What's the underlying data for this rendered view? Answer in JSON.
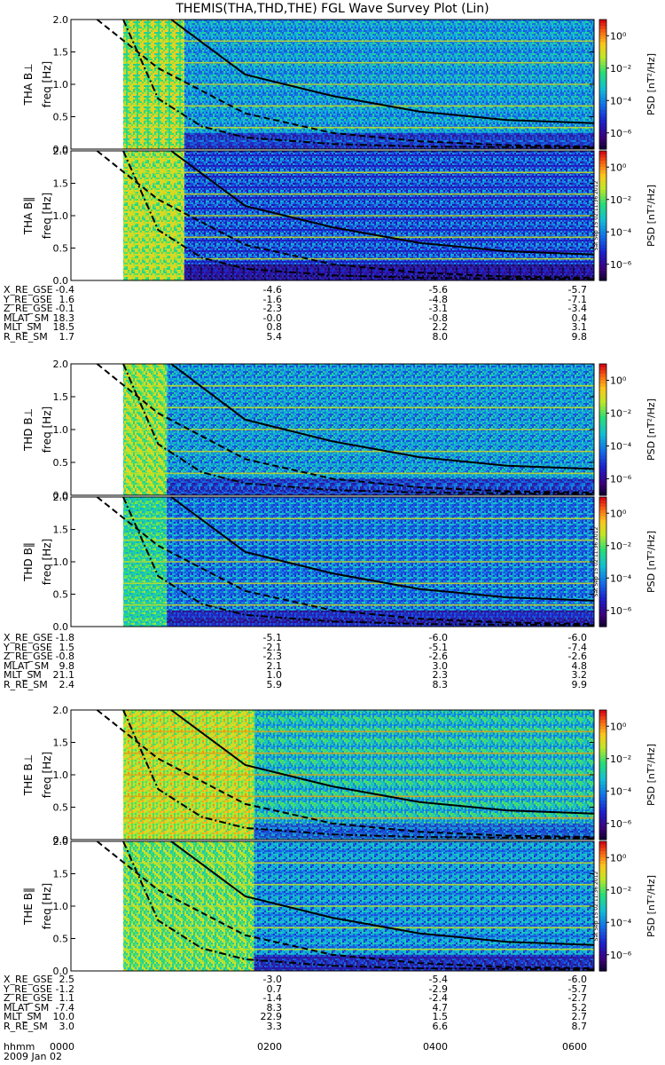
{
  "title": "THEMIS(THA,THD,THE) FGL Wave Survey Plot (Lin)",
  "colorbar": {
    "label": "PSD [nT²/Hz]",
    "ticks": [
      "10⁰",
      "10⁻²",
      "10⁻⁴",
      "10⁻⁶"
    ],
    "timestamp": "Sat Sep 15 02:11:36 2012"
  },
  "panel_ylabels": {
    "freq": "freq [Hz]",
    "tha_perp": "THA B⊥",
    "tha_par": "THA B‖",
    "thd_perp": "THD B⊥",
    "thd_par": "THD B‖",
    "the_perp": "THE B⊥",
    "the_par": "THE B‖"
  },
  "y_tick_labels": [
    "0.0",
    "0.5",
    "1.0",
    "1.5",
    "2.0"
  ],
  "time_axis": {
    "hhmm_label": "hhmm",
    "ticks": [
      "0000",
      "0200",
      "0400",
      "0600"
    ],
    "date": "2009 Jan 02"
  },
  "ephemeris": {
    "labels": [
      "X_RE_GSE",
      "Y_RE_GSE",
      "Z_RE_GSE",
      "MLAT_SM",
      "MLT_SM",
      "R_RE_SM"
    ],
    "tha": [
      [
        "-0.4",
        "-4.6",
        "-5.6",
        "-5.7"
      ],
      [
        "1.6",
        "-1.6",
        "-4.8",
        "-7.1"
      ],
      [
        "-0.1",
        "-2.3",
        "-3.1",
        "-3.4"
      ],
      [
        "18.3",
        "-0.0",
        "-0.8",
        "0.4"
      ],
      [
        "18.5",
        "0.8",
        "2.2",
        "3.1"
      ],
      [
        "1.7",
        "5.4",
        "8.0",
        "9.8"
      ]
    ],
    "thd": [
      [
        "-1.8",
        "-5.1",
        "-6.0",
        "-6.0"
      ],
      [
        "1.5",
        "-2.1",
        "-5.1",
        "-7.4"
      ],
      [
        "-0.8",
        "-2.3",
        "-2.6",
        "-2.6"
      ],
      [
        "9.8",
        "2.1",
        "3.0",
        "4.8"
      ],
      [
        "21.1",
        "1.0",
        "2.3",
        "3.2"
      ],
      [
        "2.4",
        "5.9",
        "8.3",
        "9.9"
      ]
    ],
    "the": [
      [
        "2.5",
        "-3.0",
        "-5.4",
        "-6.0"
      ],
      [
        "-1.2",
        "0.7",
        "-2.9",
        "-5.7"
      ],
      [
        "1.1",
        "-1.4",
        "-2.4",
        "-2.7"
      ],
      [
        "-7.4",
        "8.3",
        "4.7",
        "5.2"
      ],
      [
        "10.0",
        "22.9",
        "1.5",
        "2.7"
      ],
      [
        "3.0",
        "3.3",
        "6.6",
        "8.7"
      ]
    ]
  },
  "chart_data": {
    "type": "heatmap",
    "title": "THEMIS(THA,THD,THE) FGL Wave Survey Plot (Lin)",
    "xlabel": "hhmm",
    "x_ticks": [
      "0000",
      "0200",
      "0400",
      "0600"
    ],
    "xlim_hours": [
      0,
      6
    ],
    "ylabel": "freq [Hz]",
    "ylim": [
      0,
      2.0
    ],
    "color_scale": "log",
    "clim": [
      1e-07,
      10.0
    ],
    "colorbar_label": "PSD [nT²/Hz]",
    "panels": [
      {
        "probe": "THA",
        "component": "B⊥",
        "data_start_hour": 0.6,
        "fgl_high_rate_end_hour": 1.3,
        "high_rate_psd_log10": -1.5,
        "low_rate_psd_log10": -3.5
      },
      {
        "probe": "THA",
        "component": "B‖",
        "data_start_hour": 0.6,
        "fgl_high_rate_end_hour": 1.3,
        "high_rate_psd_log10": -1.5,
        "low_rate_psd_log10": -4.5
      },
      {
        "probe": "THD",
        "component": "B⊥",
        "data_start_hour": 0.6,
        "fgl_high_rate_end_hour": 1.1,
        "high_rate_psd_log10": -1.5,
        "low_rate_psd_log10": -3.5
      },
      {
        "probe": "THD",
        "component": "B‖",
        "data_start_hour": 0.6,
        "fgl_high_rate_end_hour": 1.1,
        "high_rate_psd_log10": -2.5,
        "low_rate_psd_log10": -4.0
      },
      {
        "probe": "THE",
        "component": "B⊥",
        "data_start_hour": 0.6,
        "fgl_high_rate_end_hour": 2.1,
        "high_rate_psd_log10": -1.0,
        "low_rate_psd_log10": -3.0
      },
      {
        "probe": "THE",
        "component": "B‖",
        "data_start_hour": 0.6,
        "fgl_high_rate_end_hour": 2.1,
        "high_rate_psd_log10": -2.0,
        "low_rate_psd_log10": -4.0
      }
    ],
    "curves": [
      {
        "style": "solid",
        "x_hours": [
          1.15,
          2.0,
          3.0,
          4.0,
          5.0,
          6.0
        ],
        "y": [
          2.05,
          1.15,
          0.82,
          0.58,
          0.45,
          0.4
        ]
      },
      {
        "style": "dashed",
        "x_hours": [
          0.3,
          1.0,
          2.0,
          3.0,
          4.0,
          5.0,
          6.0
        ],
        "y": [
          2.05,
          1.25,
          0.55,
          0.25,
          0.12,
          0.06,
          0.04
        ]
      },
      {
        "style": "dash-dot",
        "x_hours": [
          0.6,
          1.0,
          1.5,
          2.0,
          3.0,
          4.0,
          6.0
        ],
        "y": [
          2.0,
          0.78,
          0.35,
          0.18,
          0.08,
          0.04,
          0.02
        ]
      }
    ],
    "harmonic_lines_hz": [
      0.333,
      0.667,
      1.0,
      1.333,
      1.667
    ]
  }
}
